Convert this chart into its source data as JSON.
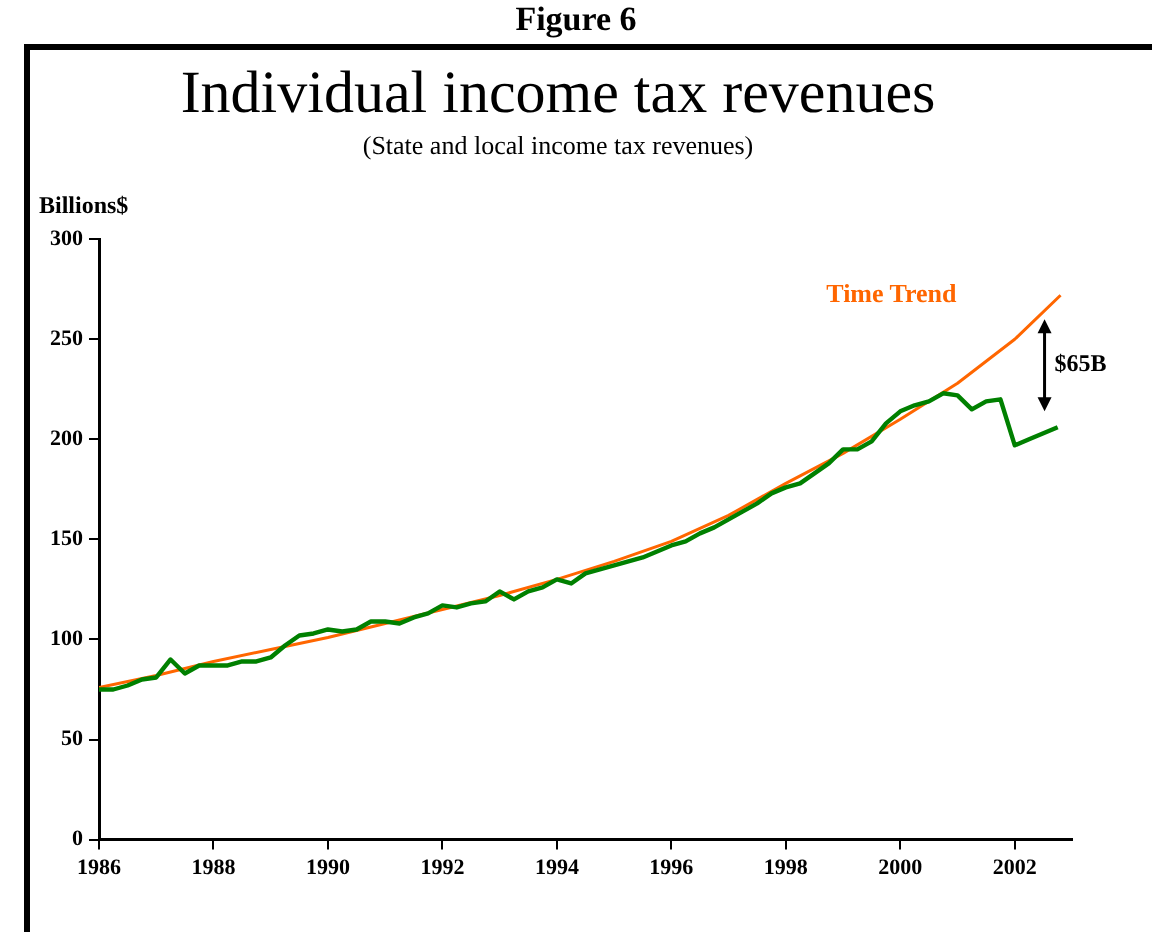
{
  "chart_data": {
    "type": "line",
    "title": "Individual income tax revenues",
    "subtitle": "(State and local income tax revenues)",
    "ylabel": "Billions$",
    "annotations": [
      "Figure 6",
      "$65B"
    ],
    "xlim": [
      1986,
      2003
    ],
    "xticks": [
      1986,
      1988,
      1990,
      1992,
      1994,
      1996,
      1998,
      2000,
      2002
    ],
    "ylim": [
      0,
      300
    ],
    "yticks": [
      0,
      50,
      100,
      150,
      200,
      250,
      300
    ],
    "grid": false,
    "legend": false,
    "marker": "none",
    "line_style": "solid",
    "series": [
      {
        "color": "#008000",
        "x": [
          1986,
          1986.25,
          1986.5,
          1986.75,
          1987,
          1987.25,
          1987.5,
          1987.75,
          1988,
          1988.25,
          1988.5,
          1988.75,
          1989,
          1989.25,
          1989.5,
          1989.75,
          1990,
          1990.25,
          1990.5,
          1990.75,
          1991,
          1991.25,
          1991.5,
          1991.75,
          1992,
          1992.25,
          1992.5,
          1992.75,
          1993,
          1993.25,
          1993.5,
          1993.75,
          1994,
          1994.25,
          1994.5,
          1994.75,
          1995,
          1995.25,
          1995.5,
          1995.75,
          1996,
          1996.25,
          1996.5,
          1996.75,
          1997,
          1997.25,
          1997.5,
          1997.75,
          1998,
          1998.25,
          1998.5,
          1998.75,
          1999,
          1999.25,
          1999.5,
          1999.75,
          2000,
          2000.25,
          2000.5,
          2000.75,
          2001,
          2001.25,
          2001.5,
          2001.75,
          2002,
          2002.25,
          2002.5,
          2002.75
        ],
        "values": [
          75,
          75,
          77,
          80,
          81,
          90,
          83,
          87,
          87,
          87,
          89,
          89,
          91,
          97,
          102,
          103,
          105,
          104,
          105,
          109,
          109,
          108,
          111,
          113,
          117,
          116,
          118,
          119,
          124,
          120,
          124,
          126,
          130,
          128,
          133,
          135,
          137,
          139,
          141,
          144,
          147,
          149,
          153,
          156,
          160,
          164,
          168,
          173,
          176,
          178,
          183,
          188,
          195,
          195,
          199,
          208,
          214,
          217,
          219,
          223,
          222,
          215,
          219,
          220,
          197,
          200,
          203,
          206
        ]
      },
      {
        "name": "Time Trend",
        "color": "#ff6600",
        "x": [
          1986,
          1987,
          1988,
          1989,
          1990,
          1991,
          1992,
          1993,
          1994,
          1995,
          1996,
          1997,
          1998,
          1999,
          2000,
          2001,
          2002,
          2002.8
        ],
        "values": [
          76,
          82,
          89,
          95,
          101,
          108,
          115,
          122,
          130,
          139,
          149,
          162,
          178,
          193,
          210,
          228,
          250,
          272
        ]
      }
    ]
  }
}
